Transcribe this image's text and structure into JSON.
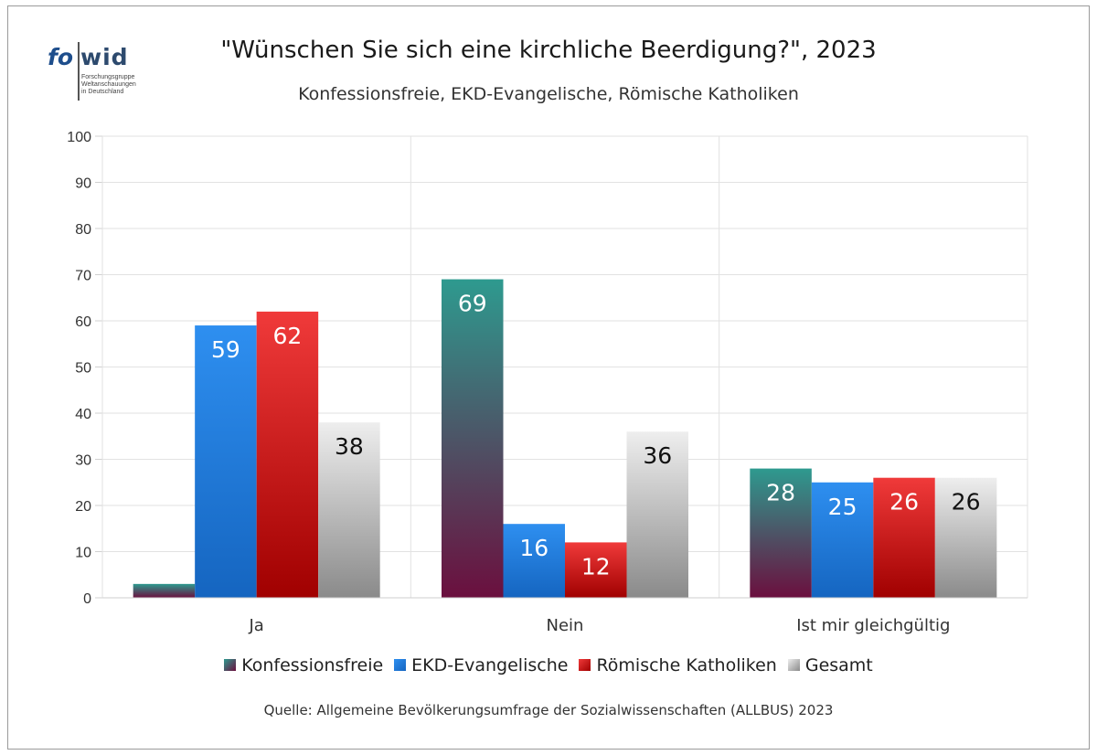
{
  "logo": {
    "text_fo": "fo",
    "text_wid": "wid",
    "subtitle_lines": [
      "Forschungsgruppe",
      "Weltanschauungen",
      "in Deutschland"
    ]
  },
  "chart_data": {
    "type": "bar",
    "title": "\"Wünschen Sie sich eine kirchliche Beerdigung?\", 2023",
    "subtitle": "Konfessionsfreie, EKD-Evangelische, Römische Katholiken",
    "categories": [
      "Ja",
      "Nein",
      "Ist mir gleichgültig"
    ],
    "series": [
      {
        "name": "Konfessionsfreie",
        "values": [
          3,
          69,
          28
        ],
        "labels": [
          "",
          "69",
          "28"
        ],
        "color_top": "#2e9a8f",
        "color_bottom": "#6b0f3e",
        "label_color": "#ffffff"
      },
      {
        "name": "EKD-Evangelische",
        "values": [
          59,
          16,
          25
        ],
        "labels": [
          "59",
          "16",
          "25"
        ],
        "color_top": "#2e8ff0",
        "color_bottom": "#1565c0",
        "label_color": "#ffffff"
      },
      {
        "name": "Römische Katholiken",
        "values": [
          62,
          12,
          26
        ],
        "labels": [
          "62",
          "12",
          "26"
        ],
        "color_top": "#f03a3a",
        "color_bottom": "#a00000",
        "label_color": "#ffffff"
      },
      {
        "name": "Gesamt",
        "values": [
          38,
          36,
          26
        ],
        "labels": [
          "38",
          "36",
          "26"
        ],
        "color_top": "#eeeeee",
        "color_bottom": "#8a8a8a",
        "label_color": "#111111"
      }
    ],
    "ylim": [
      0,
      100
    ],
    "yticks": [
      "0",
      "10",
      "20",
      "30",
      "40",
      "50",
      "60",
      "70",
      "80",
      "90",
      "100"
    ],
    "grid": true,
    "legend_position": "bottom"
  },
  "source": "Quelle: Allgemeine Bevölkerungsumfrage der Sozialwissenschaften (ALLBUS) 2023"
}
